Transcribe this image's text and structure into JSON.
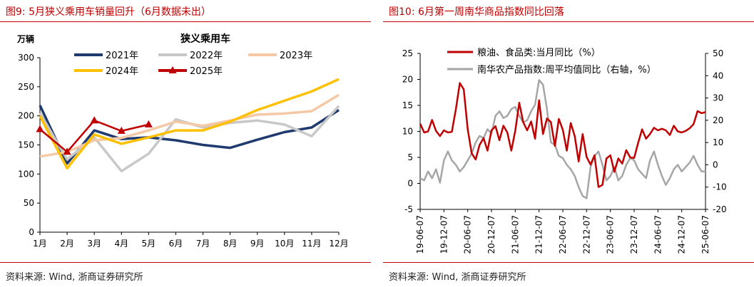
{
  "left": {
    "fig_title": "图9:   5月狭义乘用车销量回升（6月数据未出）",
    "source": "资料来源:  Wind,  浙商证券研究所"
  },
  "right": {
    "fig_title": "图10:   6月第一周南华商品指数同比回落",
    "source": "资料来源:  Wind,  浙商证券研究所"
  },
  "colors": {
    "accent": "#c00000",
    "s2021": "#1f3a6e",
    "s2022": "#c8c8c8",
    "s2023": "#f5c9a6",
    "s2024": "#ffc000",
    "s2025": "#c00000",
    "grain": "#c00000",
    "nanhua": "#a6a6a6"
  },
  "chart_data": [
    {
      "type": "line",
      "title": "狭义乘用车",
      "unit_label": "万辆",
      "categories": [
        "1月",
        "2月",
        "3月",
        "4月",
        "5月",
        "6月",
        "7月",
        "8月",
        "9月",
        "10月",
        "11月",
        "12月"
      ],
      "ylim": [
        0,
        300
      ],
      "yticks": [
        0,
        50,
        100,
        150,
        200,
        250,
        300
      ],
      "grid": false,
      "legend": "top-center",
      "series": [
        {
          "name": "2021年",
          "values": [
            218,
            118,
            175,
            160,
            163,
            158,
            150,
            145,
            159,
            172,
            180,
            210
          ]
        },
        {
          "name": "2022年",
          "values": [
            205,
            125,
            163,
            105,
            135,
            194,
            180,
            188,
            192,
            185,
            165,
            217
          ]
        },
        {
          "name": "2023年",
          "values": [
            130,
            138,
            158,
            162,
            175,
            190,
            183,
            192,
            202,
            204,
            208,
            236
          ]
        },
        {
          "name": "2024年",
          "values": [
            200,
            110,
            168,
            152,
            163,
            175,
            175,
            190,
            210,
            226,
            242,
            263
          ]
        },
        {
          "name": "2025年",
          "values": [
            177,
            138,
            192,
            174,
            185,
            null,
            null,
            null,
            null,
            null,
            null,
            null
          ],
          "marker": "triangle"
        }
      ]
    },
    {
      "type": "line",
      "title": "",
      "xticks": [
        "19-06-07",
        "19-12-07",
        "20-06-07",
        "20-12-07",
        "21-06-07",
        "21-12-07",
        "22-06-07",
        "22-12-07",
        "23-06-07",
        "23-12-07",
        "24-06-07",
        "24-12-07",
        "25-06-07"
      ],
      "y_left": {
        "lim": [
          -5,
          25
        ],
        "ticks": [
          -5,
          0,
          5,
          10,
          15,
          20,
          25
        ]
      },
      "y_right": {
        "lim": [
          -20,
          50
        ],
        "ticks": [
          -20,
          -10,
          0,
          10,
          20,
          30,
          40,
          50
        ]
      },
      "grid": false,
      "legend": "top-left",
      "series": [
        {
          "name": "粮油、食品类:当月同比（%）",
          "axis": "left",
          "x": [
            0,
            1,
            2,
            3,
            4,
            5,
            6,
            7,
            8,
            9,
            10,
            11,
            12,
            13,
            14,
            15,
            16,
            17,
            18,
            19,
            20,
            21,
            22,
            23,
            24,
            25,
            26,
            27,
            28,
            29,
            30,
            31,
            32,
            33,
            34,
            35,
            36,
            37,
            38,
            39,
            40,
            41,
            42,
            43,
            44,
            45,
            46,
            47,
            48,
            49,
            50,
            51,
            52,
            53,
            54,
            55,
            56,
            57,
            58,
            59,
            60,
            61,
            62,
            63,
            64,
            65,
            66,
            67,
            68,
            69,
            70,
            71,
            72
          ],
          "values": [
            11.5,
            9.8,
            10,
            12.2,
            10.1,
            9.1,
            10.2,
            9.8,
            9.9,
            14.2,
            19.3,
            18.1,
            10.4,
            5.8,
            4.6,
            7.4,
            8.7,
            6.3,
            10.2,
            11.0,
            8.3,
            11.1,
            9.8,
            6.3,
            10.1,
            15.5,
            11.8,
            10.2,
            11.9,
            8.6,
            16.0,
            9.5,
            12.5,
            11.8,
            7.2,
            12.4,
            10.3,
            6.3,
            11.6,
            9.1,
            4.2,
            9.5,
            5.1,
            3.6,
            5.4,
            -0.7,
            -0.3,
            4.8,
            5.4,
            2.2,
            4.8,
            3.8,
            6.4,
            5.0,
            4.9,
            7.8,
            10.4,
            8.6,
            9.5,
            10.7,
            10.2,
            10.5,
            10.2,
            9.3,
            11.1,
            10.0,
            9.8,
            10.1,
            10.6,
            11.4,
            13.9,
            13.5,
            13.7
          ]
        },
        {
          "name": "南华农产品指数:周平均值同比（右轴，%）",
          "axis": "right",
          "x": [
            0,
            1,
            2,
            3,
            4,
            5,
            6,
            7,
            8,
            9,
            10,
            11,
            12,
            13,
            14,
            15,
            16,
            17,
            18,
            19,
            20,
            21,
            22,
            23,
            24,
            25,
            26,
            27,
            28,
            29,
            30,
            31,
            32,
            33,
            34,
            35,
            36,
            37,
            38,
            39,
            40,
            41,
            42,
            43,
            44,
            45,
            46,
            47,
            48,
            49,
            50,
            51,
            52,
            53,
            54,
            55,
            56,
            57,
            58,
            59,
            60,
            61,
            62,
            63,
            64,
            65,
            66,
            67,
            68,
            69,
            70,
            71,
            72
          ],
          "values": [
            -6,
            -7,
            -3,
            -6,
            -2,
            -8,
            2,
            6,
            2,
            0,
            -3,
            -1,
            2,
            5,
            10,
            13,
            12,
            16,
            14,
            22,
            24,
            21,
            22,
            25,
            26,
            22,
            19,
            20,
            24,
            27,
            38,
            36,
            25,
            10,
            9,
            4,
            3,
            0,
            -2,
            -5,
            -10,
            -14,
            -15,
            -1,
            4,
            6,
            0,
            -7,
            -5,
            -1,
            -7,
            -5,
            0,
            3,
            2,
            -2,
            -4,
            -6,
            2,
            6,
            0,
            -5,
            -9,
            -6,
            -2,
            0,
            -3,
            -1,
            1,
            4,
            0,
            -3,
            -3
          ]
        }
      ]
    }
  ]
}
